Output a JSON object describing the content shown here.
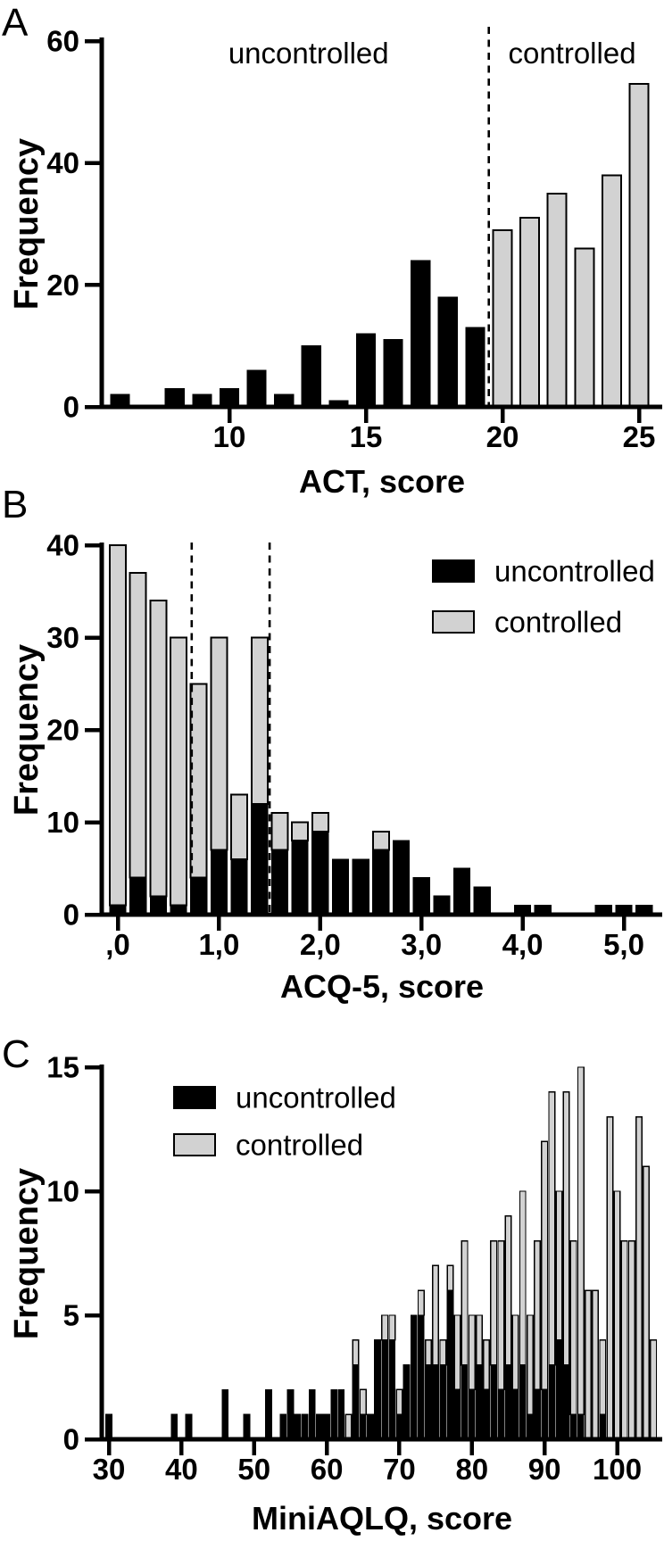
{
  "figure": {
    "description": "Three stacked histogram panels of asthma control questionnaire scores",
    "colors": {
      "uncontrolled": "#000000",
      "controlled": "#d2d2d2",
      "axis": "#000000",
      "background": "#ffffff"
    }
  },
  "chart_data": [
    {
      "panel": "A",
      "letter": "A",
      "type": "bar",
      "stacked": false,
      "xlabel": "ACT, score",
      "ylabel": "Frequency",
      "ylim": [
        0,
        60
      ],
      "yticks": [
        0,
        20,
        40,
        60
      ],
      "xtick_values": [
        10,
        15,
        20,
        25
      ],
      "xtick_labels": [
        "10",
        "15",
        "20",
        "25"
      ],
      "bin_width": 1,
      "grid": false,
      "dashed_lines_x": [
        19.5
      ],
      "annotations": [
        {
          "text": "uncontrolled",
          "x": 12.9,
          "y": 58
        },
        {
          "text": "controlled",
          "x": 22.55,
          "y": 58
        }
      ],
      "legend": null,
      "x": [
        6,
        8,
        9,
        10,
        11,
        12,
        13,
        14,
        15,
        16,
        17,
        18,
        19,
        20,
        21,
        22,
        23,
        24,
        25
      ],
      "series": [
        {
          "name": "uncontrolled",
          "values": [
            2,
            3,
            2,
            3,
            6,
            2,
            10,
            1,
            12,
            11,
            24,
            18,
            13,
            0,
            0,
            0,
            0,
            0,
            0
          ]
        },
        {
          "name": "controlled",
          "values": [
            0,
            0,
            0,
            0,
            0,
            0,
            0,
            0,
            0,
            0,
            0,
            0,
            0,
            29,
            31,
            35,
            26,
            38,
            53
          ]
        }
      ]
    },
    {
      "panel": "B",
      "letter": "B",
      "type": "bar",
      "stacked": true,
      "xlabel": "ACQ-5, score",
      "ylabel": "Frequency",
      "ylim": [
        0,
        40
      ],
      "yticks": [
        0,
        10,
        20,
        30,
        40
      ],
      "xtick_values": [
        0,
        1,
        2,
        3,
        4,
        5
      ],
      "xtick_labels": [
        ",0",
        "1,0",
        "2,0",
        "3,0",
        "4,0",
        "5,0"
      ],
      "bin_width": 0.2,
      "grid": false,
      "dashed_lines_x": [
        0.73,
        1.5
      ],
      "annotations": [],
      "legend": {
        "entries": [
          {
            "label": "uncontrolled",
            "color_key": "uncontrolled"
          },
          {
            "label": "controlled",
            "color_key": "controlled"
          }
        ]
      },
      "x": [
        0.0,
        0.2,
        0.4,
        0.6,
        0.8,
        1.0,
        1.2,
        1.4,
        1.6,
        1.8,
        2.0,
        2.2,
        2.4,
        2.6,
        2.8,
        3.0,
        3.2,
        3.4,
        3.6,
        4.0,
        4.2,
        4.8,
        5.0,
        5.2
      ],
      "series": [
        {
          "name": "uncontrolled",
          "values": [
            1,
            4,
            2,
            1,
            4,
            7,
            6,
            12,
            7,
            8,
            9,
            6,
            6,
            7,
            8,
            4,
            2,
            5,
            3,
            1,
            1,
            1,
            1,
            1
          ]
        },
        {
          "name": "controlled",
          "values": [
            39,
            33,
            32,
            29,
            21,
            23,
            7,
            18,
            4,
            2,
            2,
            0,
            0,
            2,
            0,
            0,
            0,
            0,
            0,
            0,
            0,
            0,
            0,
            0
          ]
        }
      ]
    },
    {
      "panel": "C",
      "letter": "C",
      "type": "bar",
      "stacked": true,
      "xlabel": "MiniAQLQ, score",
      "ylabel": "Frequency",
      "ylim": [
        0,
        15
      ],
      "yticks": [
        0,
        5,
        10,
        15
      ],
      "xtick_values": [
        30,
        40,
        50,
        60,
        70,
        80,
        90,
        100
      ],
      "xtick_labels": [
        "30",
        "40",
        "50",
        "60",
        "70",
        "80",
        "90",
        "100"
      ],
      "bin_width": 1,
      "grid": false,
      "dashed_lines_x": [],
      "annotations": [],
      "legend": {
        "entries": [
          {
            "label": "uncontrolled",
            "color_key": "uncontrolled"
          },
          {
            "label": "controlled",
            "color_key": "controlled"
          }
        ]
      },
      "x": [
        30,
        39,
        41,
        46,
        49,
        52,
        54,
        55,
        56,
        57,
        58,
        59,
        60,
        61,
        62,
        63,
        64,
        65,
        66,
        67,
        68,
        69,
        70,
        71,
        72,
        73,
        74,
        75,
        76,
        77,
        78,
        79,
        80,
        81,
        82,
        83,
        84,
        85,
        86,
        87,
        88,
        89,
        90,
        91,
        92,
        93,
        94,
        95,
        96,
        97,
        98,
        99,
        100,
        101,
        102,
        103,
        104,
        105
      ],
      "series": [
        {
          "name": "uncontrolled",
          "values": [
            1,
            1,
            1,
            2,
            1,
            2,
            1,
            2,
            1,
            1,
            2,
            1,
            1,
            2,
            2,
            0,
            3,
            1,
            1,
            4,
            4,
            4,
            1,
            3,
            5,
            5,
            3,
            3,
            3,
            6,
            2,
            3,
            2,
            3,
            2,
            3,
            2,
            3,
            2,
            3,
            1,
            2,
            2,
            3,
            4,
            3,
            1,
            1,
            0,
            0,
            1,
            0,
            0,
            0,
            0,
            0,
            0,
            0
          ]
        },
        {
          "name": "controlled",
          "values": [
            0,
            0,
            0,
            0,
            0,
            0,
            0,
            0,
            0,
            0,
            0,
            0,
            0,
            0,
            0,
            1,
            1,
            1,
            0,
            0,
            1,
            1,
            1,
            0,
            0,
            1,
            1,
            4,
            1,
            1,
            3,
            5,
            3,
            2,
            2,
            5,
            6,
            6,
            3,
            7,
            4,
            6,
            10,
            11,
            6,
            11,
            7,
            14,
            6,
            6,
            3,
            13,
            10,
            8,
            8,
            13,
            11,
            4
          ]
        }
      ]
    }
  ]
}
